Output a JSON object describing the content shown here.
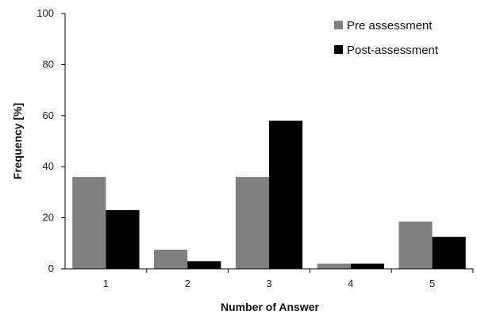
{
  "chart_data": {
    "type": "bar",
    "categories": [
      "1",
      "2",
      "3",
      "4",
      "5"
    ],
    "series": [
      {
        "name": "Pre assessment",
        "values": [
          36,
          7.5,
          36,
          2,
          18.5
        ],
        "color": "#808080"
      },
      {
        "name": "Post-assessment",
        "values": [
          23,
          3,
          58,
          2,
          12.5
        ],
        "color": "#000000"
      }
    ],
    "xlabel": "Number of Answer",
    "ylabel": "Frequency [%]",
    "ylim": [
      0,
      100
    ],
    "yticks": [
      "0",
      "20",
      "40",
      "60",
      "80",
      "100"
    ],
    "grid": false,
    "legend_position": "top-right"
  }
}
